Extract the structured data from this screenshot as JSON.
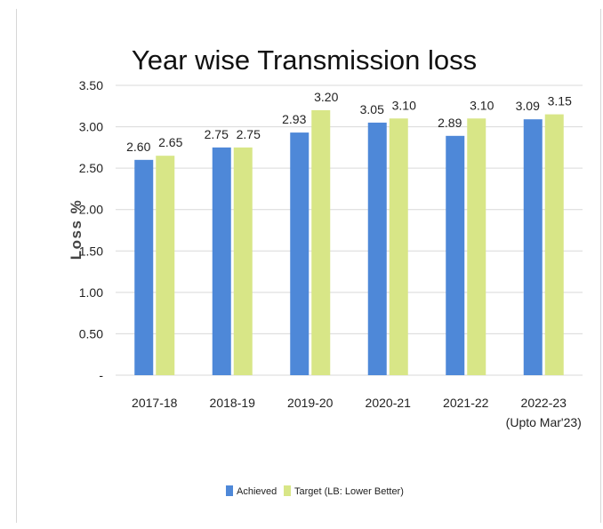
{
  "chart_data": {
    "type": "bar",
    "title": "Year wise Transmission loss",
    "xlabel": "",
    "ylabel": "Loss %",
    "categories": [
      "2017-18",
      "2018-19",
      "2019-20",
      "2020-21",
      "2021-22",
      "2022-23\n(Upto Mar'23)"
    ],
    "series": [
      {
        "name": "Achieved",
        "values": [
          2.6,
          2.75,
          2.93,
          3.05,
          2.89,
          3.09
        ],
        "color": "#4e88d8"
      },
      {
        "name": "Target (LB: Lower Better)",
        "values": [
          2.65,
          2.75,
          3.2,
          3.1,
          3.1,
          3.15
        ],
        "color": "#d8e687"
      }
    ],
    "ylim": [
      0,
      3.5
    ],
    "yticks": [
      "-",
      "0.50",
      "1.00",
      "1.50",
      "2.00",
      "2.50",
      "3.00",
      "3.50"
    ],
    "ytick_values": [
      0,
      0.5,
      1.0,
      1.5,
      2.0,
      2.5,
      3.0,
      3.5
    ],
    "grid": true,
    "legend_position": "bottom"
  }
}
